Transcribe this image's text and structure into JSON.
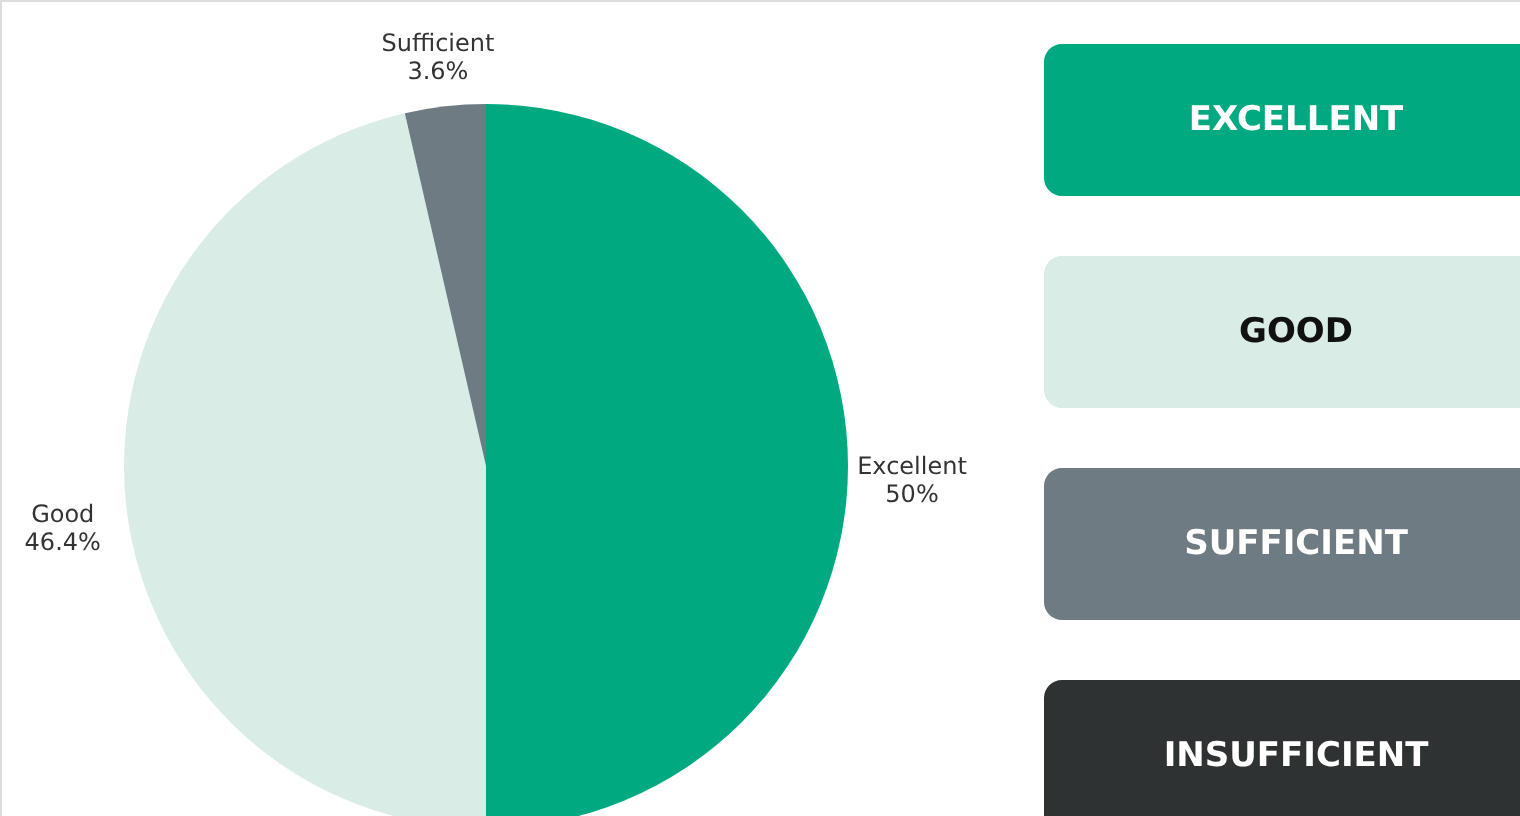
{
  "chart_data": {
    "type": "pie",
    "categories": [
      "Excellent",
      "Good",
      "Sufficient",
      null
    ],
    "values": [
      50,
      46.4,
      3.6,
      0
    ],
    "colors": [
      "#00a97f",
      "#d9ede6",
      "#6e7b83",
      "#2f3233"
    ],
    "value_labels": [
      "50%",
      "46.4%",
      "3.6%",
      null
    ],
    "annotations": [
      "EXCELLENT",
      "GOOD",
      "SUFFICIENT",
      "INSUFFICIENT"
    ]
  }
}
